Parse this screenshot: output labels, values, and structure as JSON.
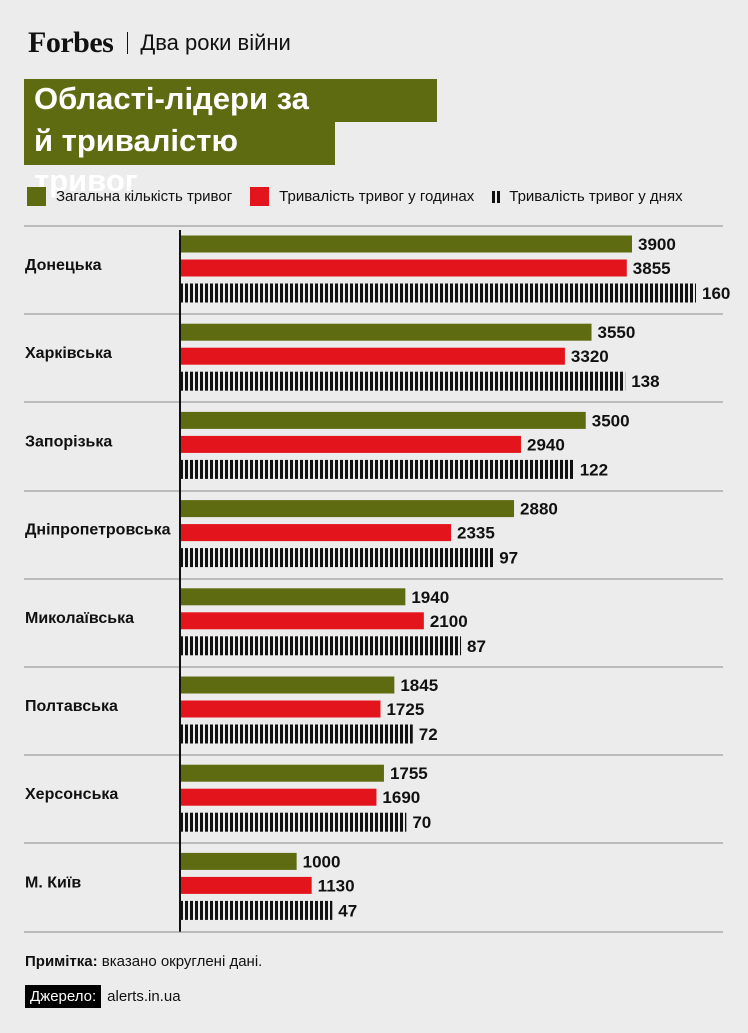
{
  "header": {
    "logo": "Forbes",
    "subtitle": "Два роки війни"
  },
  "title": {
    "line1": "Області-лідери за кількістю",
    "line2": "й тривалістю тривог",
    "bg_color": "#5e6b10"
  },
  "legend": {
    "count": "Загальна кількість тривог",
    "hours": "Тривалість тривог у годинах",
    "days": "Тривалість тривог у днях"
  },
  "colors": {
    "count": "#5e6b10",
    "hours": "#e3141b",
    "days": "#111111"
  },
  "chart_data": {
    "type": "bar",
    "orientation": "horizontal",
    "categories": [
      "Донецька",
      "Харківська",
      "Запорізька",
      "Дніпропетровська",
      "Миколаївська",
      "Полтавська",
      "Херсонська",
      "М. Київ"
    ],
    "series": [
      {
        "name": "Загальна кількість тривог",
        "values": [
          3900,
          3550,
          3500,
          2880,
          1940,
          1845,
          1755,
          1000
        ]
      },
      {
        "name": "Тривалість тривог у годинах",
        "values": [
          3855,
          3320,
          2940,
          2335,
          2100,
          1725,
          1690,
          1130
        ]
      },
      {
        "name": "Тривалість тривог у днях",
        "values": [
          160,
          138,
          122,
          97,
          87,
          72,
          70,
          47
        ]
      }
    ]
  },
  "note": {
    "label": "Примітка:",
    "text": "вказано округлені дані."
  },
  "source": {
    "label": "Джерело:",
    "text": "alerts.in.ua"
  }
}
